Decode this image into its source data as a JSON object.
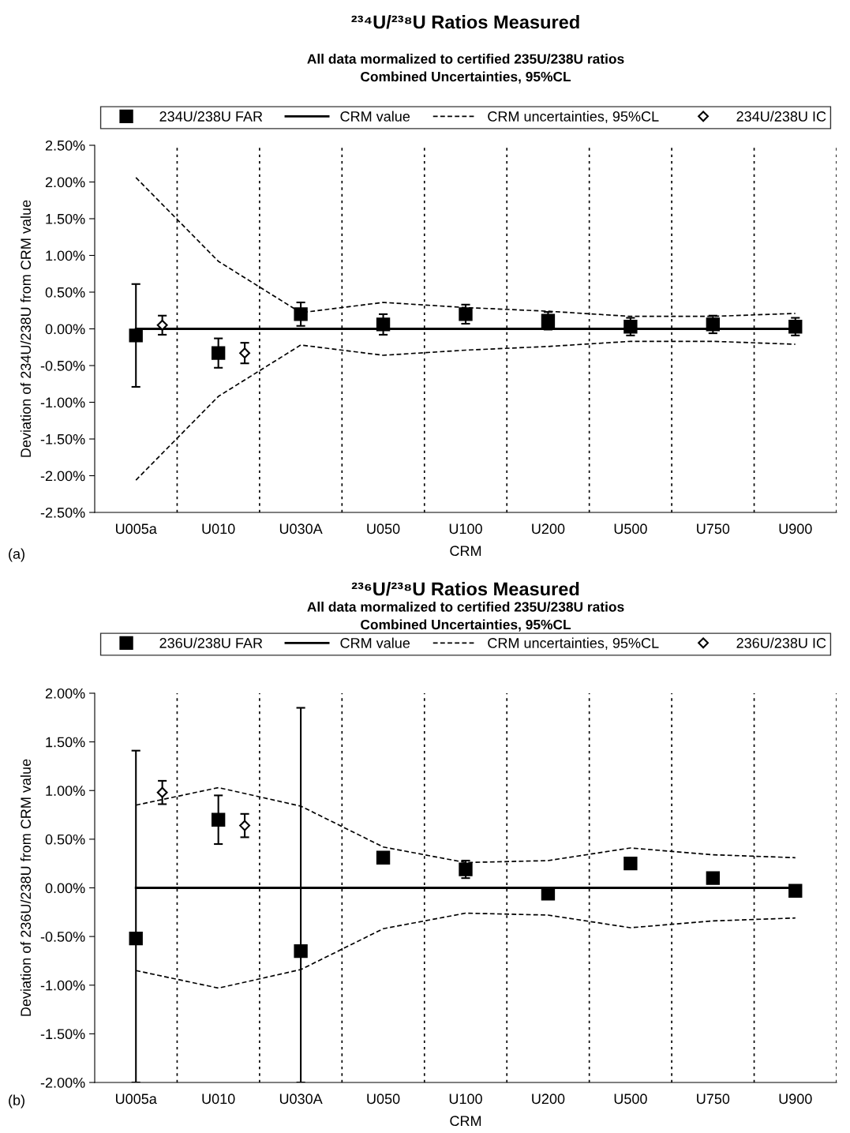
{
  "chart_data": [
    {
      "type": "scatter",
      "title": "²³⁴U/²³⁸U Ratios Measured",
      "subtitle": "All data mormalized to certified 235U/238U ratios\nCombined Uncertainties, 95%CL",
      "xlabel": "CRM",
      "ylabel": "Deviation of 234U/238U from CRM value",
      "annotations": [
        "(a)"
      ],
      "categories": [
        "U005a",
        "U010",
        "U030A",
        "U050",
        "U100",
        "U200",
        "U500",
        "U750",
        "U900"
      ],
      "ylim": [
        -2.5,
        2.5
      ],
      "yticks": [
        {
          "value": -2.5,
          "label": "-2.50%"
        },
        {
          "value": -2.0,
          "label": "-2.00%"
        },
        {
          "value": -1.5,
          "label": "-1.50%"
        },
        {
          "value": -1.0,
          "label": "-1.00%"
        },
        {
          "value": -0.5,
          "label": "-0.50%"
        },
        {
          "value": 0,
          "label": "0.00%"
        },
        {
          "value": 0.5,
          "label": "0.50%"
        },
        {
          "value": 1.0,
          "label": "1.00%"
        },
        {
          "value": 1.5,
          "label": "1.50%"
        },
        {
          "value": 2.0,
          "label": "2.00%"
        },
        {
          "value": 2.5,
          "label": "2.50%"
        }
      ],
      "grid": "x",
      "legend": "top",
      "series": [
        {
          "name": "234U/238U FAR",
          "type": "scatter",
          "marker": "square",
          "color": "#000000",
          "values": [
            -0.09,
            -0.33,
            0.2,
            0.06,
            0.2,
            0.11,
            0.03,
            0.06,
            0.03
          ],
          "errors": [
            0.7,
            0.2,
            0.16,
            0.14,
            0.13,
            0.12,
            0.12,
            0.12,
            0.12
          ]
        },
        {
          "name": "CRM value",
          "type": "line",
          "marker": "none",
          "line_style": "solid",
          "color": "#000000",
          "values": [
            0,
            0,
            0,
            0,
            0,
            0,
            0,
            0,
            0
          ]
        },
        {
          "name": "CRM uncertainties, 95%CL",
          "type": "line",
          "marker": "none",
          "line_style": "dashed",
          "color": "#000000",
          "values": [
            2.06,
            0.92,
            0.22,
            0.36,
            0.29,
            0.24,
            0.17,
            0.17,
            0.21
          ]
        },
        {
          "type": "line",
          "marker": "none",
          "line_style": "dashed",
          "color": "#000000",
          "values": [
            -2.06,
            -0.92,
            -0.22,
            -0.36,
            -0.29,
            -0.24,
            -0.17,
            -0.17,
            -0.21
          ]
        },
        {
          "name": "234U/238U IC",
          "type": "scatter",
          "marker": "diamond",
          "color": "#000000",
          "values": [
            0.05,
            -0.33,
            null,
            null,
            null,
            null,
            null,
            null,
            null
          ],
          "errors": [
            0.13,
            0.14,
            null,
            null,
            null,
            null,
            null,
            null,
            null
          ]
        }
      ]
    },
    {
      "type": "scatter",
      "title": "²³⁶U/²³⁸U Ratios Measured",
      "subtitle": "All data mormalized to certified 235U/238U ratios\nCombined Uncertainties, 95%CL",
      "xlabel": "CRM",
      "ylabel": "Deviation of 236U/238U from CRM value",
      "annotations": [
        "(b)"
      ],
      "categories": [
        "U005a",
        "U010",
        "U030A",
        "U050",
        "U100",
        "U200",
        "U500",
        "U750",
        "U900"
      ],
      "ylim": [
        -2.0,
        2.0
      ],
      "yticks": [
        {
          "value": -2.0,
          "label": "-2.00%"
        },
        {
          "value": -1.5,
          "label": "-1.50%"
        },
        {
          "value": -1.0,
          "label": "-1.00%"
        },
        {
          "value": -0.5,
          "label": "-0.50%"
        },
        {
          "value": 0,
          "label": "0.00%"
        },
        {
          "value": 0.5,
          "label": "0.50%"
        },
        {
          "value": 1.0,
          "label": "1.00%"
        },
        {
          "value": 1.5,
          "label": "1.50%"
        },
        {
          "value": 2.0,
          "label": "2.00%"
        }
      ],
      "grid": "x",
      "legend": "top",
      "series": [
        {
          "name": "236U/238U FAR",
          "type": "scatter",
          "marker": "square",
          "color": "#000000",
          "values": [
            -0.52,
            0.7,
            -0.65,
            0.31,
            0.19,
            -0.06,
            0.25,
            0.1,
            -0.03
          ],
          "errors": [
            [
              -2.0,
              1.41
            ],
            0.25,
            [
              -2.0,
              1.85
            ],
            0.05,
            0.09,
            0.05,
            0.04,
            0.04,
            0.04
          ]
        },
        {
          "name": "CRM value",
          "type": "line",
          "marker": "none",
          "line_style": "solid",
          "color": "#000000",
          "values": [
            0,
            0,
            0,
            0,
            0,
            0,
            0,
            0,
            0
          ]
        },
        {
          "name": "CRM uncertainties, 95%CL",
          "type": "line",
          "marker": "none",
          "line_style": "dashed",
          "color": "#000000",
          "values": [
            0.85,
            1.03,
            0.84,
            0.42,
            0.26,
            0.28,
            0.41,
            0.34,
            0.31
          ]
        },
        {
          "type": "line",
          "marker": "none",
          "line_style": "dashed",
          "color": "#000000",
          "values": [
            -0.85,
            -1.03,
            -0.84,
            -0.42,
            -0.26,
            -0.28,
            -0.41,
            -0.34,
            -0.31
          ]
        },
        {
          "name": "236U/238U IC",
          "type": "scatter",
          "marker": "diamond",
          "color": "#000000",
          "values": [
            0.98,
            0.64,
            null,
            null,
            null,
            null,
            null,
            null,
            null
          ],
          "errors": [
            0.12,
            0.12,
            null,
            null,
            null,
            null,
            null,
            null,
            null
          ]
        }
      ]
    }
  ]
}
